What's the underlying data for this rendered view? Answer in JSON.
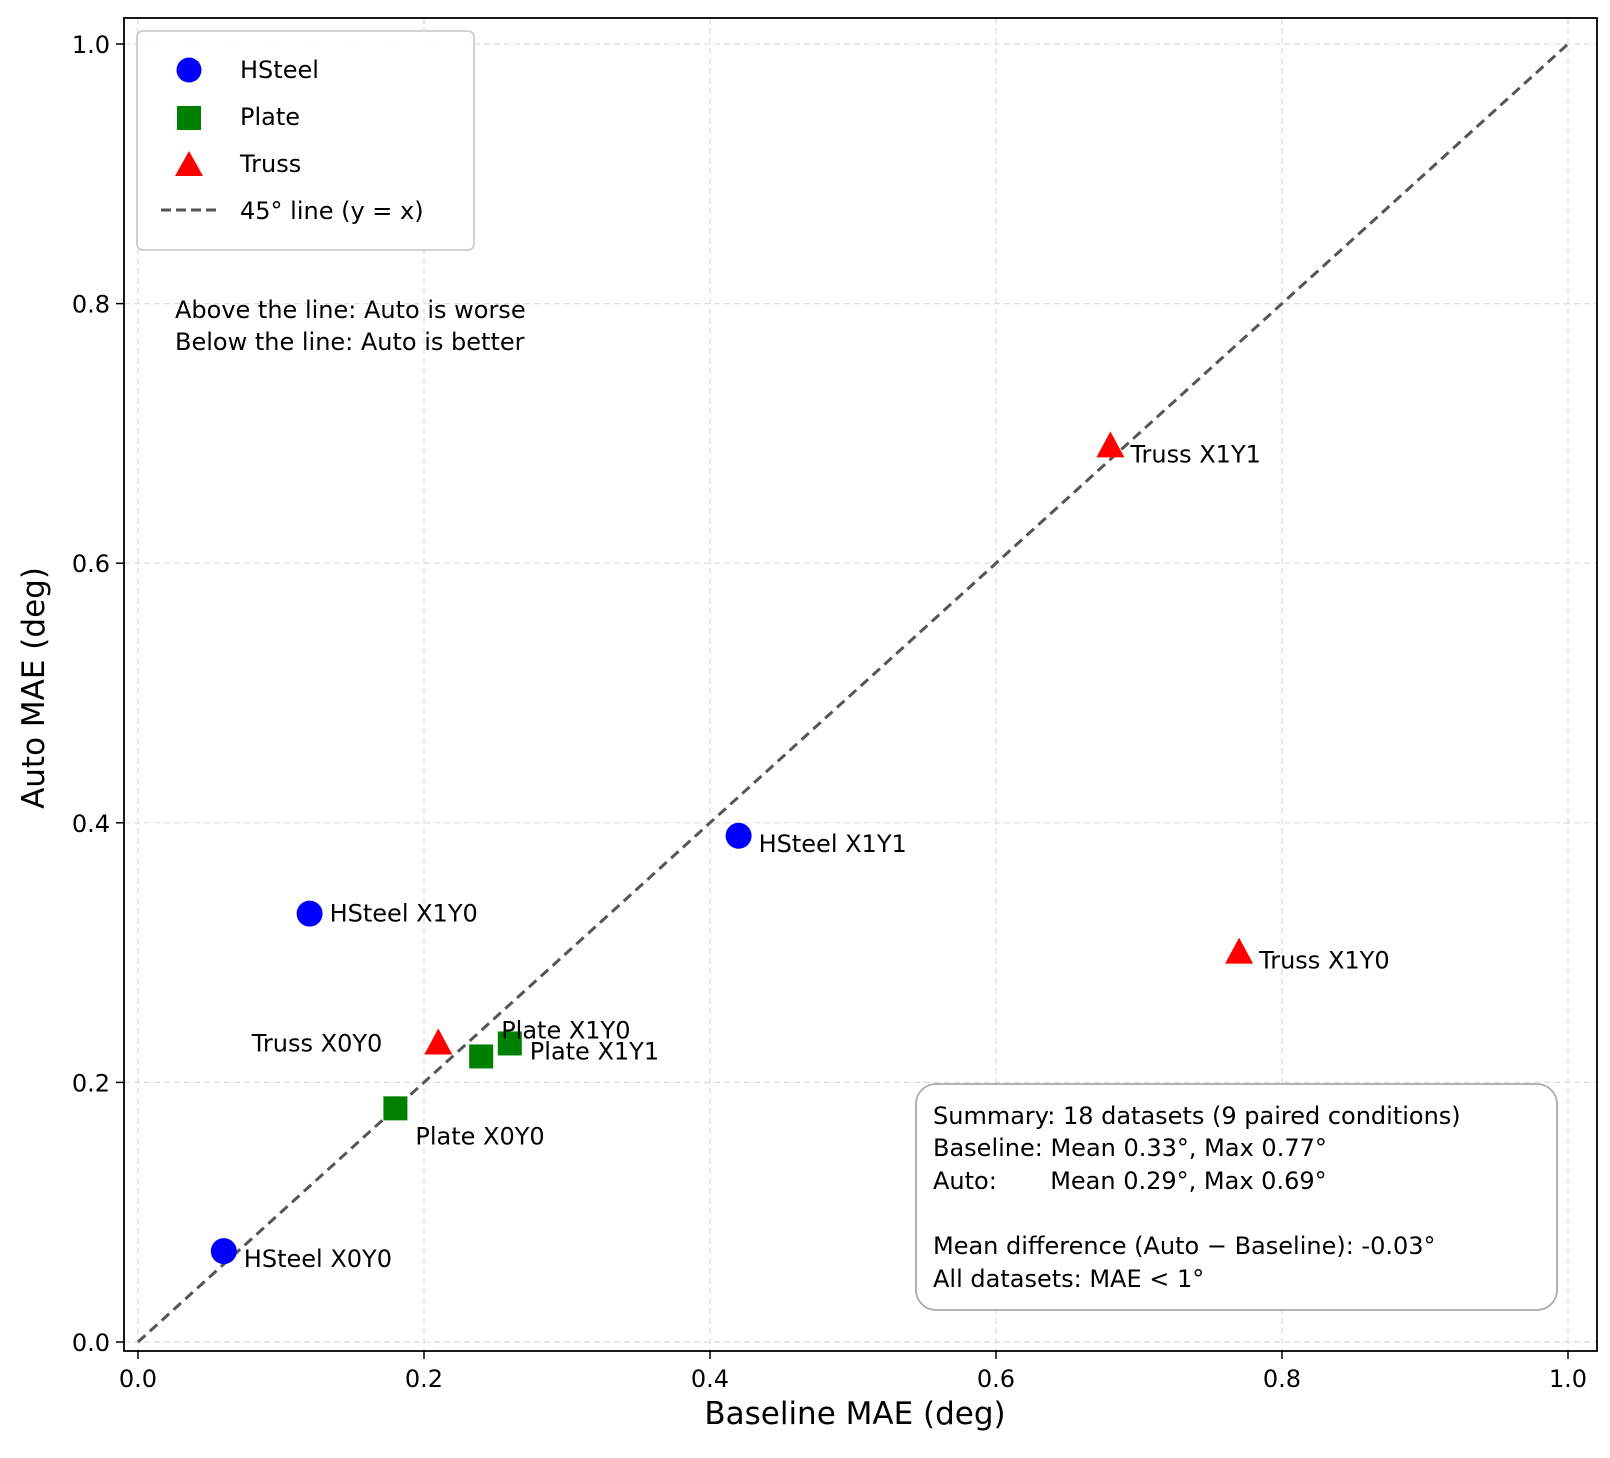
{
  "chart_data": {
    "type": "scatter",
    "xlabel": "Baseline MAE (deg)",
    "ylabel": "Auto MAE (deg)",
    "xlim": [
      -0.01,
      1.02
    ],
    "ylim": [
      -0.01,
      1.02
    ],
    "xticks": [
      "0.0",
      "0.2",
      "0.4",
      "0.6",
      "0.8",
      "1.0"
    ],
    "yticks": [
      "0.0",
      "0.2",
      "0.4",
      "0.6",
      "0.8",
      "1.0"
    ],
    "grid": true,
    "legend_position": "top-left",
    "series": [
      {
        "name": "HSteel",
        "marker": "circle",
        "color": "#0000ff",
        "points": [
          {
            "x": 0.06,
            "y": 0.07,
            "label": "HSteel X0Y0"
          },
          {
            "x": 0.12,
            "y": 0.33,
            "label": "HSteel X1Y0"
          },
          {
            "x": 0.42,
            "y": 0.39,
            "label": "HSteel X1Y1"
          }
        ]
      },
      {
        "name": "Plate",
        "marker": "square",
        "color": "#008000",
        "points": [
          {
            "x": 0.18,
            "y": 0.18,
            "label": "Plate X0Y0"
          },
          {
            "x": 0.24,
            "y": 0.22,
            "label": "Plate X1Y0"
          },
          {
            "x": 0.26,
            "y": 0.23,
            "label": "Plate X1Y1"
          }
        ]
      },
      {
        "name": "Truss",
        "marker": "triangle",
        "color": "#ff0000",
        "points": [
          {
            "x": 0.21,
            "y": 0.23,
            "label": "Truss X0Y0"
          },
          {
            "x": 0.77,
            "y": 0.3,
            "label": "Truss X1Y0"
          },
          {
            "x": 0.68,
            "y": 0.69,
            "label": "Truss X1Y1"
          }
        ]
      }
    ],
    "reference_line": {
      "name": "45° line (y = x)",
      "color": "#555555",
      "style": "dashed",
      "from": [
        0,
        0
      ],
      "to": [
        1,
        1
      ]
    },
    "annotations": {
      "region_note": [
        "Above the line: Auto is worse",
        "Below the line: Auto is better"
      ],
      "summary": [
        "Summary: 18 datasets (9 paired conditions)",
        "Baseline: Mean 0.33°, Max 0.77°",
        "Auto:       Mean 0.29°, Max 0.69°",
        "",
        "Mean difference (Auto − Baseline): -0.03°",
        "All datasets: MAE < 1°"
      ]
    }
  }
}
